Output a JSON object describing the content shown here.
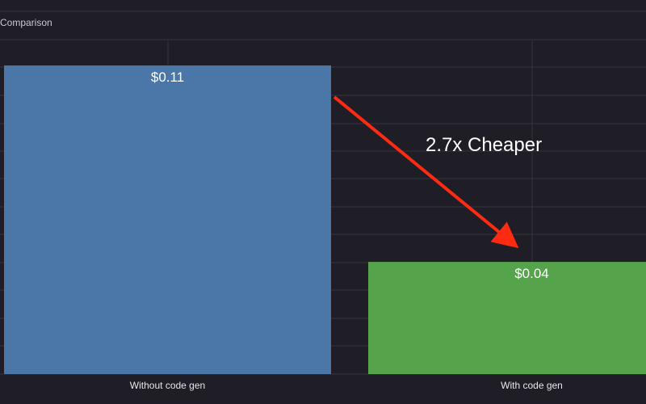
{
  "chart_data": {
    "type": "bar",
    "title": "Comparison",
    "categories": [
      "Without code gen",
      "With code gen"
    ],
    "values": [
      0.11,
      0.04
    ],
    "value_labels": [
      "$0.11",
      "$0.04"
    ],
    "ylim": [
      0,
      0.11
    ],
    "grid": true,
    "annotation": {
      "text": "2.7x Cheaper",
      "color": "#ff2a12"
    },
    "colors": {
      "background": "#1f1e27",
      "grid": "#34333d",
      "bars": [
        "#4a77a8",
        "#55a34a"
      ]
    }
  }
}
